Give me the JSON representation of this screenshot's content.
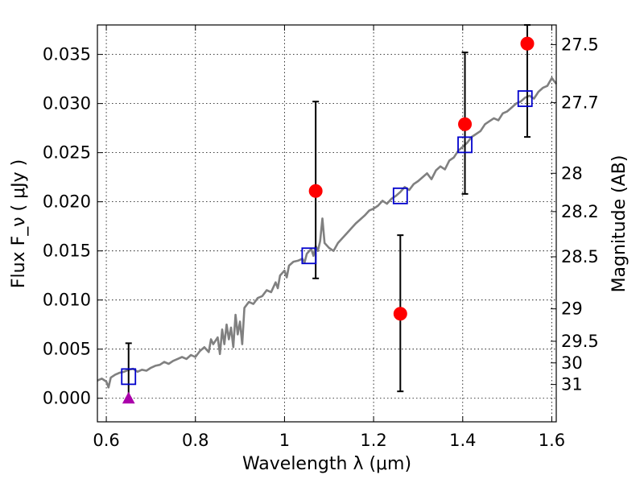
{
  "chart_data": {
    "type": "scatter",
    "xlabel": "Wavelength  λ (μm)",
    "ylabel": "Flux  F_ν  ( μJy )",
    "ylabel_right": "Magnitude (AB)",
    "xlim": [
      0.58,
      1.61
    ],
    "ylim": [
      -0.0024,
      0.038
    ],
    "x_ticks": [
      0.6,
      0.8,
      1.0,
      1.2,
      1.4,
      1.6
    ],
    "x_tick_labels": [
      "0.6",
      "0.8",
      "1",
      "1.2",
      "1.4",
      "1.6"
    ],
    "y_ticks": [
      0.0,
      0.005,
      0.01,
      0.015,
      0.02,
      0.025,
      0.03,
      0.035
    ],
    "y_tick_labels": [
      "0.000",
      "0.005",
      "0.010",
      "0.015",
      "0.020",
      "0.025",
      "0.030",
      "0.035"
    ],
    "right_ticks": [
      {
        "label": "27.5",
        "flux": 0.036
      },
      {
        "label": "27.7",
        "flux": 0.0301
      },
      {
        "label": "28",
        "flux": 0.0229
      },
      {
        "label": "28.2",
        "flux": 0.019
      },
      {
        "label": "28.5",
        "flux": 0.0144
      },
      {
        "label": "29",
        "flux": 0.0091
      },
      {
        "label": "29.5",
        "flux": 0.0058
      },
      {
        "label": "30",
        "flux": 0.0036
      },
      {
        "label": "31",
        "flux": 0.0014
      }
    ],
    "grid": true,
    "observed": {
      "color": "#ff0000",
      "points": [
        {
          "x": 0.65,
          "y": 0.0,
          "yerr_low": 0.0,
          "yerr_high": 0.0056,
          "upper_limit": true
        },
        {
          "x": 1.07,
          "y": 0.0211,
          "yerr_low": 0.0122,
          "yerr_high": 0.0302
        },
        {
          "x": 1.26,
          "y": 0.0086,
          "yerr_low": 0.0007,
          "yerr_high": 0.0166
        },
        {
          "x": 1.405,
          "y": 0.0279,
          "yerr_low": 0.0208,
          "yerr_high": 0.0352
        },
        {
          "x": 1.545,
          "y": 0.0361,
          "yerr_low": 0.0266,
          "yerr_high": 0.038
        }
      ]
    },
    "model_photometry": {
      "color": "#0000cc",
      "points": [
        {
          "x": 0.65,
          "y": 0.0022
        },
        {
          "x": 1.055,
          "y": 0.0145
        },
        {
          "x": 1.26,
          "y": 0.0206
        },
        {
          "x": 1.405,
          "y": 0.0258
        },
        {
          "x": 1.54,
          "y": 0.0305
        }
      ]
    },
    "upper_limit_marker_color": "#aa00aa",
    "spectrum": {
      "color": "#808080",
      "points": [
        [
          0.58,
          0.0018
        ],
        [
          0.59,
          0.002
        ],
        [
          0.6,
          0.0017
        ],
        [
          0.605,
          0.0011
        ],
        [
          0.61,
          0.0021
        ],
        [
          0.62,
          0.0024
        ],
        [
          0.63,
          0.0026
        ],
        [
          0.64,
          0.0027
        ],
        [
          0.65,
          0.0029
        ],
        [
          0.66,
          0.003
        ],
        [
          0.67,
          0.0027
        ],
        [
          0.68,
          0.0029
        ],
        [
          0.69,
          0.0028
        ],
        [
          0.7,
          0.0031
        ],
        [
          0.71,
          0.0033
        ],
        [
          0.72,
          0.0034
        ],
        [
          0.73,
          0.0037
        ],
        [
          0.74,
          0.0035
        ],
        [
          0.75,
          0.0038
        ],
        [
          0.76,
          0.004
        ],
        [
          0.77,
          0.0042
        ],
        [
          0.78,
          0.004
        ],
        [
          0.79,
          0.0044
        ],
        [
          0.8,
          0.0042
        ],
        [
          0.81,
          0.0048
        ],
        [
          0.82,
          0.0052
        ],
        [
          0.83,
          0.0047
        ],
        [
          0.835,
          0.006
        ],
        [
          0.84,
          0.0055
        ],
        [
          0.85,
          0.0062
        ],
        [
          0.855,
          0.0045
        ],
        [
          0.86,
          0.007
        ],
        [
          0.865,
          0.0055
        ],
        [
          0.87,
          0.0075
        ],
        [
          0.875,
          0.006
        ],
        [
          0.88,
          0.0072
        ],
        [
          0.885,
          0.0052
        ],
        [
          0.89,
          0.0085
        ],
        [
          0.895,
          0.0065
        ],
        [
          0.9,
          0.0078
        ],
        [
          0.905,
          0.0055
        ],
        [
          0.91,
          0.0092
        ],
        [
          0.92,
          0.0098
        ],
        [
          0.93,
          0.0096
        ],
        [
          0.94,
          0.0102
        ],
        [
          0.95,
          0.0104
        ],
        [
          0.96,
          0.011
        ],
        [
          0.97,
          0.0108
        ],
        [
          0.98,
          0.0118
        ],
        [
          0.985,
          0.0112
        ],
        [
          0.99,
          0.0125
        ],
        [
          1.0,
          0.013
        ],
        [
          1.005,
          0.0123
        ],
        [
          1.01,
          0.0135
        ],
        [
          1.02,
          0.0139
        ],
        [
          1.03,
          0.014
        ],
        [
          1.04,
          0.0142
        ],
        [
          1.045,
          0.0138
        ],
        [
          1.05,
          0.0147
        ],
        [
          1.06,
          0.0152
        ],
        [
          1.065,
          0.0145
        ],
        [
          1.07,
          0.0155
        ],
        [
          1.075,
          0.015
        ],
        [
          1.08,
          0.016
        ],
        [
          1.085,
          0.0183
        ],
        [
          1.09,
          0.0158
        ],
        [
          1.1,
          0.0153
        ],
        [
          1.11,
          0.015
        ],
        [
          1.12,
          0.0158
        ],
        [
          1.13,
          0.0163
        ],
        [
          1.14,
          0.0168
        ],
        [
          1.15,
          0.0173
        ],
        [
          1.16,
          0.0178
        ],
        [
          1.17,
          0.0182
        ],
        [
          1.18,
          0.0186
        ],
        [
          1.19,
          0.0191
        ],
        [
          1.2,
          0.0193
        ],
        [
          1.21,
          0.0196
        ],
        [
          1.22,
          0.0201
        ],
        [
          1.23,
          0.0198
        ],
        [
          1.24,
          0.0203
        ],
        [
          1.25,
          0.0206
        ],
        [
          1.26,
          0.021
        ],
        [
          1.27,
          0.0215
        ],
        [
          1.28,
          0.0212
        ],
        [
          1.29,
          0.0218
        ],
        [
          1.3,
          0.0221
        ],
        [
          1.31,
          0.0225
        ],
        [
          1.32,
          0.0229
        ],
        [
          1.33,
          0.0223
        ],
        [
          1.34,
          0.0232
        ],
        [
          1.35,
          0.0236
        ],
        [
          1.36,
          0.0233
        ],
        [
          1.37,
          0.0242
        ],
        [
          1.38,
          0.0245
        ],
        [
          1.39,
          0.0252
        ],
        [
          1.4,
          0.0256
        ],
        [
          1.41,
          0.026
        ],
        [
          1.42,
          0.0266
        ],
        [
          1.43,
          0.0269
        ],
        [
          1.44,
          0.0272
        ],
        [
          1.45,
          0.0279
        ],
        [
          1.46,
          0.0282
        ],
        [
          1.47,
          0.0285
        ],
        [
          1.48,
          0.0283
        ],
        [
          1.49,
          0.029
        ],
        [
          1.5,
          0.0292
        ],
        [
          1.51,
          0.0296
        ],
        [
          1.52,
          0.03
        ],
        [
          1.53,
          0.0302
        ],
        [
          1.54,
          0.0306
        ],
        [
          1.55,
          0.0308
        ],
        [
          1.56,
          0.0305
        ],
        [
          1.57,
          0.0312
        ],
        [
          1.58,
          0.0316
        ],
        [
          1.59,
          0.0318
        ],
        [
          1.6,
          0.0326
        ],
        [
          1.61,
          0.032
        ]
      ]
    }
  }
}
